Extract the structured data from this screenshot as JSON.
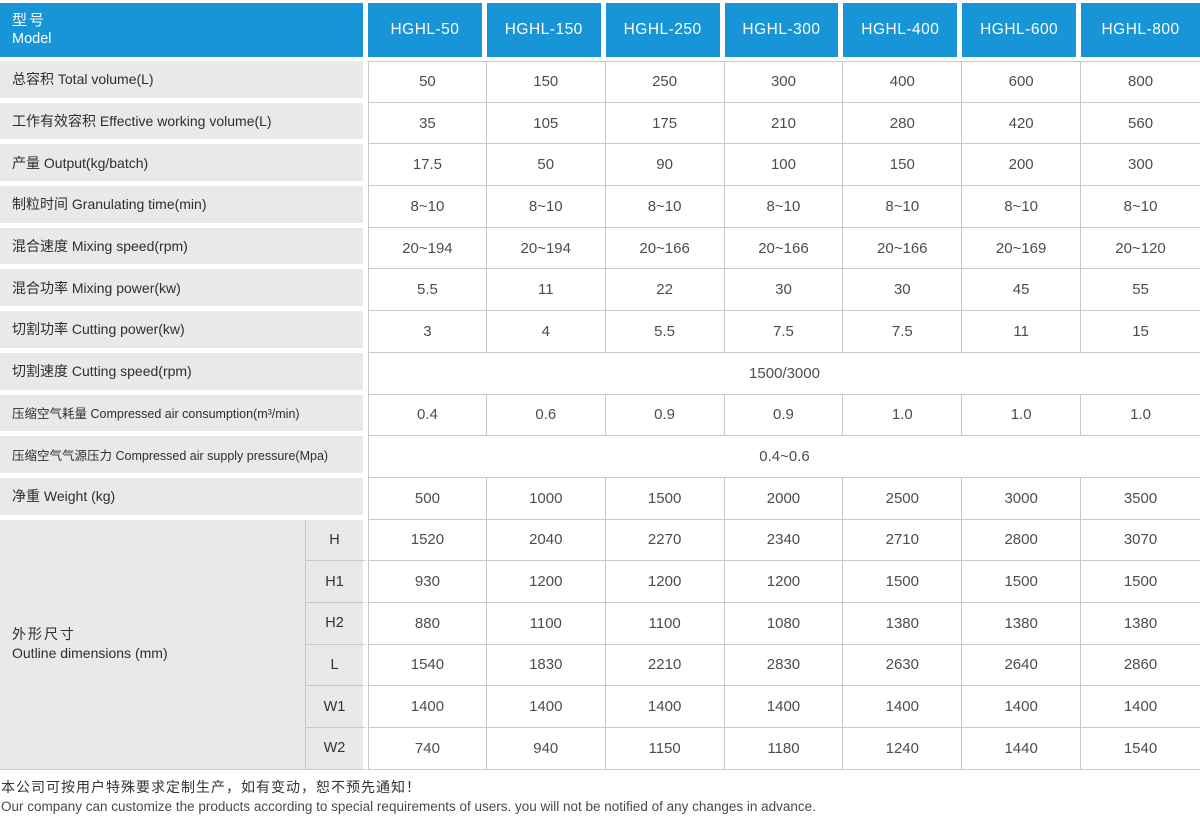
{
  "header": {
    "model_zh": "型号",
    "model_en": "Model",
    "models": [
      "HGHL-50",
      "HGHL-150",
      "HGHL-250",
      "HGHL-300",
      "HGHL-400",
      "HGHL-600",
      "HGHL-800"
    ]
  },
  "rows": [
    {
      "label": "总容积 Total volume(L)",
      "values": [
        "50",
        "150",
        "250",
        "300",
        "400",
        "600",
        "800"
      ]
    },
    {
      "label": "工作有效容积 Effective working volume(L)",
      "values": [
        "35",
        "105",
        "175",
        "210",
        "280",
        "420",
        "560"
      ]
    },
    {
      "label": "产量 Output(kg/batch)",
      "values": [
        "17.5",
        "50",
        "90",
        "100",
        "150",
        "200",
        "300"
      ]
    },
    {
      "label": "制粒时间 Granulating time(min)",
      "values": [
        "8~10",
        "8~10",
        "8~10",
        "8~10",
        "8~10",
        "8~10",
        "8~10"
      ]
    },
    {
      "label": "混合速度 Mixing speed(rpm)",
      "values": [
        "20~194",
        "20~194",
        "20~166",
        "20~166",
        "20~166",
        "20~169",
        "20~120"
      ]
    },
    {
      "label": "混合功率 Mixing power(kw)",
      "values": [
        "5.5",
        "11",
        "22",
        "30",
        "30",
        "45",
        "55"
      ]
    },
    {
      "label": "切割功率 Cutting power(kw)",
      "values": [
        "3",
        "4",
        "5.5",
        "7.5",
        "7.5",
        "11",
        "15"
      ]
    },
    {
      "label": "切割速度 Cutting speed(rpm)",
      "merged": "1500/3000"
    },
    {
      "label": "压缩空气耗量 Compressed air consumption(m³/min)",
      "values": [
        "0.4",
        "0.6",
        "0.9",
        "0.9",
        "1.0",
        "1.0",
        "1.0"
      ]
    },
    {
      "label": "压缩空气气源压力 Compressed air supply pressure(Mpa)",
      "merged": "0.4~0.6"
    },
    {
      "label": "净重 Weight (kg)",
      "values": [
        "500",
        "1000",
        "1500",
        "2000",
        "2500",
        "3000",
        "3500"
      ]
    }
  ],
  "dims": {
    "zh": "外形尺寸",
    "en": "Outline dimensions (mm)",
    "rows": [
      {
        "name": "H",
        "values": [
          "1520",
          "2040",
          "2270",
          "2340",
          "2710",
          "2800",
          "3070"
        ]
      },
      {
        "name": "H1",
        "values": [
          "930",
          "1200",
          "1200",
          "1200",
          "1500",
          "1500",
          "1500"
        ]
      },
      {
        "name": "H2",
        "values": [
          "880",
          "1100",
          "1100",
          "1080",
          "1380",
          "1380",
          "1380"
        ]
      },
      {
        "name": "L",
        "values": [
          "1540",
          "1830",
          "2210",
          "2830",
          "2630",
          "2640",
          "2860"
        ]
      },
      {
        "name": "W1",
        "values": [
          "1400",
          "1400",
          "1400",
          "1400",
          "1400",
          "1400",
          "1400"
        ]
      },
      {
        "name": "W2",
        "values": [
          "740",
          "940",
          "1150",
          "1180",
          "1240",
          "1440",
          "1540"
        ]
      }
    ]
  },
  "footer": {
    "zh": "本公司可按用户特殊要求定制生产，如有变动，恕不预先通知！",
    "en": "Our company can customize the products according to special requirements of users. you will not be notified of any changes in advance."
  },
  "colors": {
    "header_blue": "#1795d6",
    "label_gray": "#e9e9e9",
    "grid_line": "#c8c8c8"
  }
}
